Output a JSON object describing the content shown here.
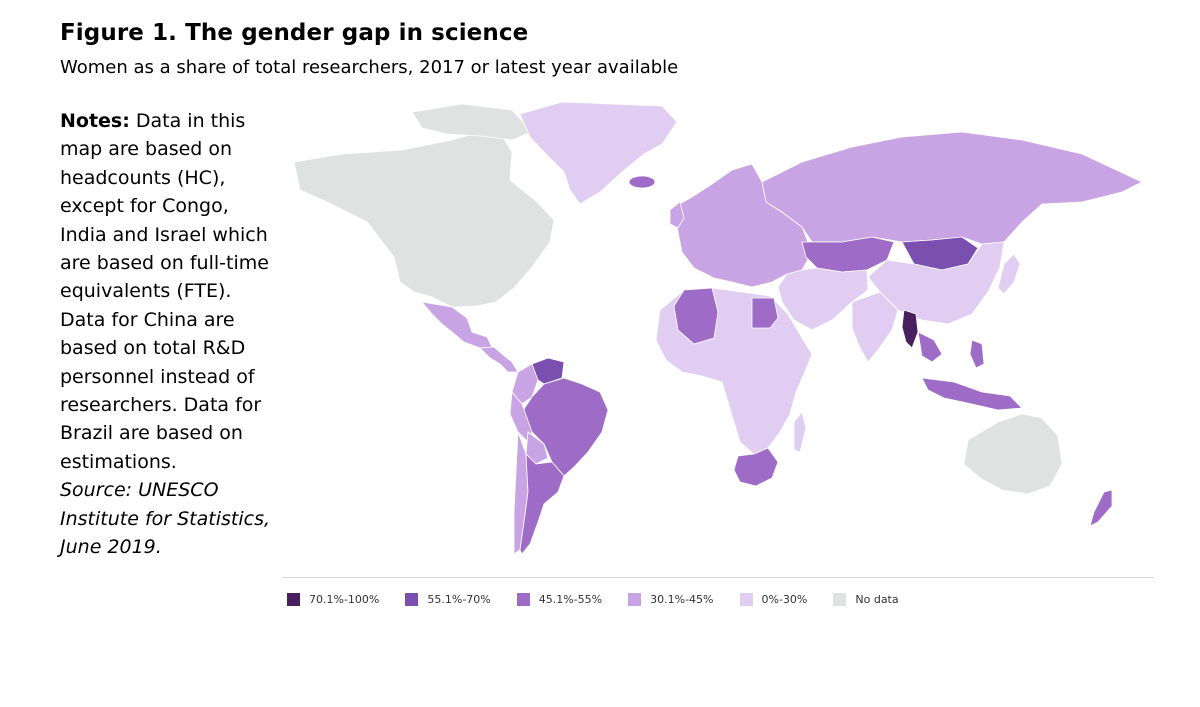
{
  "figure": {
    "title": "Figure 1.  The gender gap in science",
    "subtitle": "Women as a share of total researchers, 2017 or latest year available"
  },
  "notes": {
    "label": "Notes:",
    "text": " Data in this map are based on headcounts (HC), except for Congo, India and Israel which are based on full-time equivalents (FTE). Data for China are based on total R&D personnel instead of researchers. Data for Brazil are based on estimations.",
    "source": "Source: UNESCO Institute for Statistics, June 2019."
  },
  "colors": {
    "c70_100": "#4a1f5e",
    "c55_70": "#7b4fb0",
    "c45_55": "#9e6cc6",
    "c30_45": "#c9a4e4",
    "c0_30": "#e1ccf2",
    "nodata": "#e0e2e2"
  },
  "legend": [
    {
      "label": "70.1%-100%",
      "color": "#4a1f5e"
    },
    {
      "label": "55.1%-70%",
      "color": "#7b4fb0"
    },
    {
      "label": "45.1%-55%",
      "color": "#9e6cc6"
    },
    {
      "label": "30.1%-45%",
      "color": "#c9a4e4"
    },
    {
      "label": "0%-30%",
      "color": "#e1ccf2"
    },
    {
      "label": "No data",
      "color": "#e0e2e2"
    }
  ],
  "regions": [
    {
      "name": "north-america",
      "category": "No data"
    },
    {
      "name": "greenland",
      "category": "0%-30%"
    },
    {
      "name": "mexico",
      "category": "30.1%-45%"
    },
    {
      "name": "central-america",
      "category": "30.1%-45%"
    },
    {
      "name": "venezuela",
      "category": "55.1%-70%"
    },
    {
      "name": "colombia",
      "category": "30.1%-45%"
    },
    {
      "name": "brazil",
      "category": "45.1%-55%"
    },
    {
      "name": "peru",
      "category": "30.1%-45%"
    },
    {
      "name": "bolivia",
      "category": "30.1%-45%"
    },
    {
      "name": "chile",
      "category": "30.1%-45%"
    },
    {
      "name": "argentina",
      "category": "45.1%-55%"
    },
    {
      "name": "russia",
      "category": "30.1%-45%"
    },
    {
      "name": "europe",
      "category": "30.1%-45%"
    },
    {
      "name": "kazakhstan",
      "category": "45.1%-55%"
    },
    {
      "name": "mongolia",
      "category": "55.1%-70%"
    },
    {
      "name": "china",
      "category": "0%-30%"
    },
    {
      "name": "india",
      "category": "0%-30%"
    },
    {
      "name": "myanmar",
      "category": "70.1%-100%"
    },
    {
      "name": "southeast-asia",
      "category": "45.1%-55%"
    },
    {
      "name": "middle-east",
      "category": "0%-30%"
    },
    {
      "name": "algeria",
      "category": "45.1%-55%"
    },
    {
      "name": "egypt",
      "category": "45.1%-55%"
    },
    {
      "name": "africa",
      "category": "0%-30%"
    },
    {
      "name": "south-africa",
      "category": "45.1%-55%"
    },
    {
      "name": "australia",
      "category": "No data"
    },
    {
      "name": "new-zealand",
      "category": "45.1%-55%"
    },
    {
      "name": "japan",
      "category": "0%-30%"
    },
    {
      "name": "iceland",
      "category": "45.1%-55%"
    }
  ]
}
